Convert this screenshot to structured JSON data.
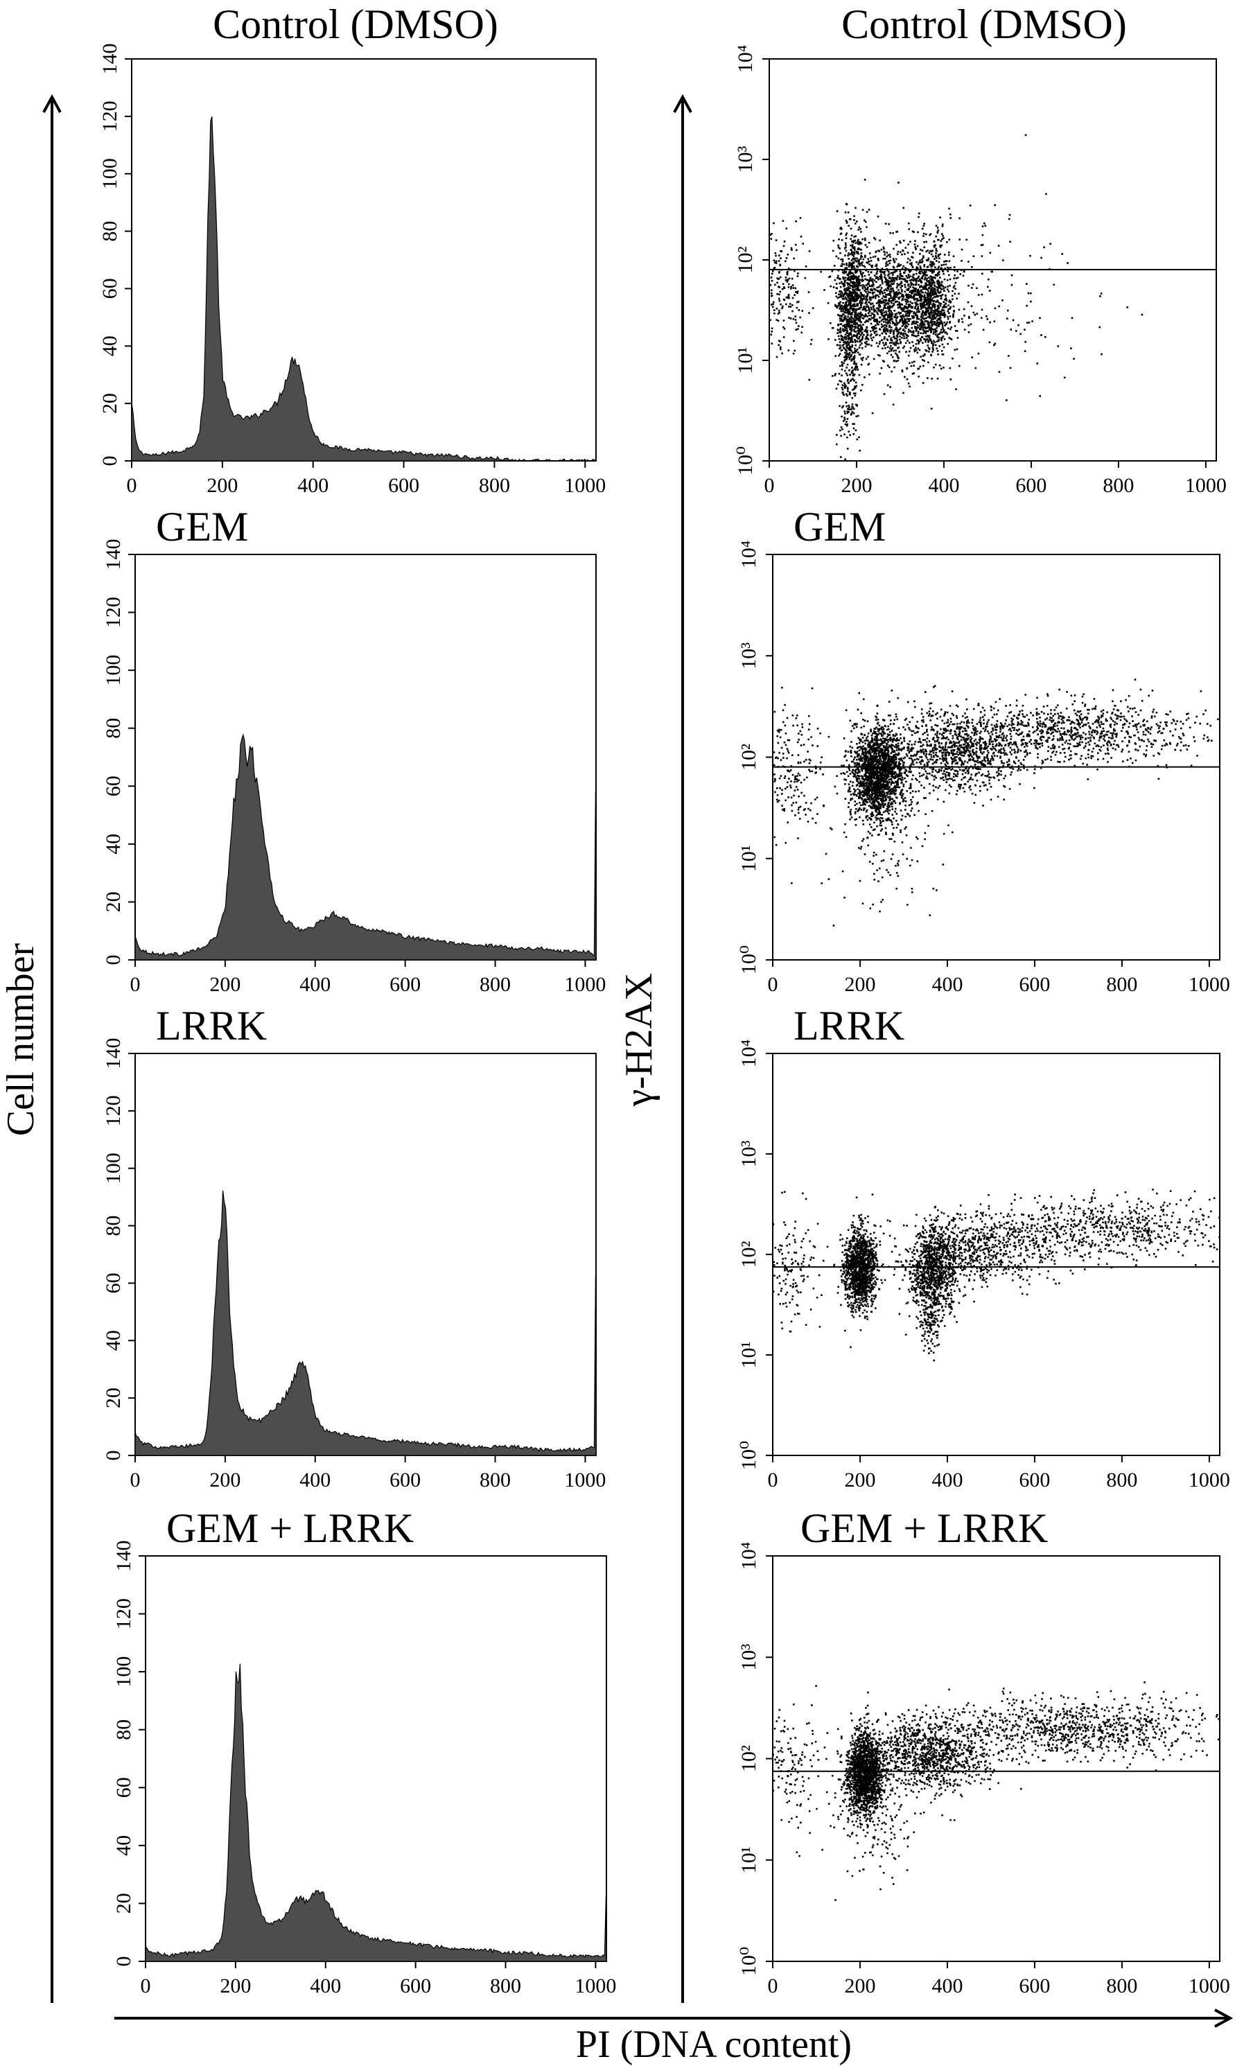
{
  "figure": {
    "y_axis_left_label": "Cell number",
    "y_axis_right_label": "γ-H2AX",
    "x_axis_label": "PI (DNA content)"
  },
  "panel_titles": [
    "Control (DMSO)",
    "GEM",
    "LRRK",
    "GEM + LRRK"
  ],
  "chart_data": [
    {
      "type": "area",
      "title": "Control (DMSO)",
      "xlim": [
        0,
        1024
      ],
      "ylim": [
        0,
        140
      ],
      "xticks": [
        "0",
        "200",
        "400",
        "600",
        "800",
        "1000"
      ],
      "yticks": [
        "0",
        "20",
        "40",
        "60",
        "80",
        "100",
        "120",
        "140"
      ],
      "color": "#4d4d4d",
      "x": [
        0,
        10,
        20,
        40,
        60,
        80,
        100,
        120,
        140,
        150,
        160,
        165,
        170,
        175,
        180,
        185,
        190,
        195,
        200,
        210,
        220,
        240,
        260,
        280,
        300,
        320,
        340,
        350,
        360,
        370,
        380,
        390,
        400,
        420,
        440,
        480,
        520,
        560,
        600,
        650,
        700,
        750,
        800,
        850,
        900,
        1000,
        1024
      ],
      "y": [
        20,
        6,
        3,
        2,
        2,
        3,
        3,
        4,
        6,
        10,
        25,
        60,
        100,
        122,
        112,
        90,
        65,
        45,
        30,
        22,
        17,
        15,
        15,
        16,
        18,
        20,
        28,
        34,
        36,
        33,
        25,
        16,
        10,
        6,
        5,
        4,
        4,
        3,
        3,
        2,
        2,
        1,
        1,
        0,
        0,
        0,
        0
      ]
    },
    {
      "type": "area",
      "title": "GEM",
      "xlim": [
        0,
        1024
      ],
      "ylim": [
        0,
        140
      ],
      "xticks": [
        "0",
        "200",
        "400",
        "600",
        "800",
        "1000"
      ],
      "yticks": [
        "0",
        "20",
        "40",
        "60",
        "80",
        "100",
        "120",
        "140"
      ],
      "color": "#4d4d4d",
      "x": [
        0,
        10,
        20,
        50,
        100,
        150,
        180,
        200,
        210,
        220,
        230,
        240,
        250,
        260,
        270,
        280,
        290,
        300,
        310,
        330,
        350,
        370,
        400,
        420,
        440,
        460,
        480,
        500,
        550,
        600,
        650,
        700,
        750,
        800,
        850,
        900,
        950,
        1000,
        1020,
        1024
      ],
      "y": [
        8,
        4,
        3,
        2,
        2,
        4,
        8,
        18,
        35,
        55,
        68,
        74,
        70,
        72,
        62,
        50,
        38,
        28,
        20,
        14,
        12,
        10,
        12,
        14,
        16,
        15,
        13,
        11,
        10,
        8,
        7,
        6,
        5,
        5,
        4,
        4,
        3,
        3,
        2,
        80
      ]
    },
    {
      "type": "area",
      "title": "LRRK",
      "xlim": [
        0,
        1024
      ],
      "ylim": [
        0,
        140
      ],
      "xticks": [
        "0",
        "200",
        "400",
        "600",
        "800",
        "1000"
      ],
      "yticks": [
        "0",
        "20",
        "40",
        "60",
        "80",
        "100",
        "120",
        "140"
      ],
      "color": "#4d4d4d",
      "x": [
        0,
        10,
        20,
        50,
        100,
        150,
        160,
        170,
        180,
        190,
        195,
        200,
        205,
        210,
        220,
        230,
        250,
        280,
        300,
        320,
        340,
        360,
        370,
        380,
        390,
        400,
        420,
        440,
        480,
        520,
        560,
        600,
        650,
        700,
        750,
        800,
        850,
        900,
        950,
        1000,
        1020,
        1024
      ],
      "y": [
        8,
        5,
        4,
        3,
        3,
        4,
        10,
        30,
        60,
        82,
        88,
        85,
        70,
        50,
        30,
        18,
        13,
        12,
        15,
        18,
        22,
        30,
        32,
        30,
        22,
        14,
        9,
        8,
        7,
        6,
        5,
        5,
        4,
        4,
        3,
        3,
        3,
        2,
        2,
        2,
        3,
        80
      ]
    },
    {
      "type": "area",
      "title": "GEM + LRRK",
      "xlim": [
        0,
        1024
      ],
      "ylim": [
        0,
        140
      ],
      "xticks": [
        "0",
        "200",
        "400",
        "600",
        "800",
        "1000"
      ],
      "yticks": [
        "0",
        "20",
        "40",
        "60",
        "80",
        "100",
        "120",
        "140"
      ],
      "color": "#4d4d4d",
      "x": [
        0,
        10,
        20,
        50,
        100,
        150,
        170,
        180,
        190,
        200,
        205,
        210,
        215,
        220,
        230,
        240,
        260,
        280,
        300,
        320,
        340,
        360,
        380,
        400,
        420,
        440,
        460,
        500,
        550,
        600,
        650,
        700,
        750,
        800,
        850,
        900,
        950,
        1000,
        1020,
        1024
      ],
      "y": [
        5,
        3,
        3,
        2,
        3,
        4,
        8,
        25,
        60,
        95,
        102,
        98,
        85,
        65,
        40,
        25,
        15,
        13,
        14,
        18,
        22,
        20,
        24,
        22,
        16,
        12,
        10,
        8,
        7,
        6,
        5,
        4,
        4,
        3,
        3,
        2,
        2,
        2,
        2,
        30
      ]
    },
    {
      "type": "scatter",
      "title": "Control (DMSO)",
      "xlim": [
        0,
        1024
      ],
      "ylim": [
        1,
        10000
      ],
      "y_scale": "log",
      "xticks": [
        "0",
        "200",
        "400",
        "600",
        "800",
        "1000"
      ],
      "yticks": [
        "10⁰",
        "10¹",
        "10²",
        "10³",
        "10⁴"
      ],
      "threshold_y": 80,
      "color": "#000000",
      "clusters": [
        {
          "x_mean": 190,
          "x_sd": 18,
          "log_y_mean": 1.6,
          "log_y_sd": 0.35,
          "n": 900
        },
        {
          "x_mean": 290,
          "x_sd": 50,
          "log_y_mean": 1.55,
          "log_y_sd": 0.28,
          "n": 1300
        },
        {
          "x_mean": 370,
          "x_sd": 25,
          "log_y_mean": 1.6,
          "log_y_sd": 0.28,
          "n": 700
        },
        {
          "x_mean": 180,
          "x_sd": 12,
          "log_y_mean": 0.7,
          "log_y_sd": 0.35,
          "n": 150
        },
        {
          "x_mean": 30,
          "x_sd": 30,
          "log_y_mean": 1.7,
          "log_y_sd": 0.3,
          "n": 200
        },
        {
          "x_mean": 420,
          "x_sd": 140,
          "log_y_mean": 1.6,
          "log_y_sd": 0.45,
          "n": 250
        }
      ]
    },
    {
      "type": "scatter",
      "title": "GEM",
      "xlim": [
        0,
        1024
      ],
      "ylim": [
        1,
        10000
      ],
      "y_scale": "log",
      "xticks": [
        "0",
        "200",
        "400",
        "600",
        "800",
        "1000"
      ],
      "yticks": [
        "10⁰",
        "10¹",
        "10²",
        "10³",
        "10⁴"
      ],
      "threshold_y": 80,
      "color": "#000000",
      "clusters": [
        {
          "x_mean": 240,
          "x_sd": 30,
          "log_y_mean": 1.85,
          "log_y_sd": 0.22,
          "n": 1800
        },
        {
          "x_mean": 420,
          "x_sd": 80,
          "log_y_mean": 2.05,
          "log_y_sd": 0.2,
          "n": 1000
        },
        {
          "x_mean": 700,
          "x_sd": 150,
          "log_y_mean": 2.25,
          "log_y_sd": 0.15,
          "n": 900
        },
        {
          "x_mean": 40,
          "x_sd": 40,
          "log_y_mean": 1.85,
          "log_y_sd": 0.3,
          "n": 200
        },
        {
          "x_mean": 260,
          "x_sd": 60,
          "log_y_mean": 1.2,
          "log_y_sd": 0.4,
          "n": 150
        }
      ]
    },
    {
      "type": "scatter",
      "title": "LRRK",
      "xlim": [
        0,
        1024
      ],
      "ylim": [
        1,
        10000
      ],
      "y_scale": "log",
      "xticks": [
        "0",
        "200",
        "400",
        "600",
        "800",
        "1000"
      ],
      "yticks": [
        "10⁰",
        "10¹",
        "10²",
        "10³",
        "10⁴"
      ],
      "threshold_y": 75,
      "color": "#000000",
      "clusters": [
        {
          "x_mean": 200,
          "x_sd": 18,
          "log_y_mean": 1.85,
          "log_y_sd": 0.2,
          "n": 1200
        },
        {
          "x_mean": 370,
          "x_sd": 28,
          "log_y_mean": 1.85,
          "log_y_sd": 0.22,
          "n": 900
        },
        {
          "x_mean": 480,
          "x_sd": 90,
          "log_y_mean": 2.05,
          "log_y_sd": 0.18,
          "n": 600
        },
        {
          "x_mean": 750,
          "x_sd": 150,
          "log_y_mean": 2.25,
          "log_y_sd": 0.15,
          "n": 700
        },
        {
          "x_mean": 40,
          "x_sd": 40,
          "log_y_mean": 1.85,
          "log_y_sd": 0.3,
          "n": 150
        },
        {
          "x_mean": 360,
          "x_sd": 15,
          "log_y_mean": 1.35,
          "log_y_sd": 0.15,
          "n": 120
        }
      ]
    },
    {
      "type": "scatter",
      "title": "GEM + LRRK",
      "xlim": [
        0,
        1024
      ],
      "ylim": [
        1,
        10000
      ],
      "y_scale": "log",
      "xticks": [
        "0",
        "200",
        "400",
        "600",
        "800",
        "1000"
      ],
      "yticks": [
        "10⁰",
        "10¹",
        "10²",
        "10³",
        "10⁴"
      ],
      "threshold_y": 75,
      "color": "#000000",
      "clusters": [
        {
          "x_mean": 210,
          "x_sd": 20,
          "log_y_mean": 1.85,
          "log_y_sd": 0.2,
          "n": 1500
        },
        {
          "x_mean": 360,
          "x_sd": 70,
          "log_y_mean": 2.05,
          "log_y_sd": 0.18,
          "n": 1000
        },
        {
          "x_mean": 700,
          "x_sd": 160,
          "log_y_mean": 2.3,
          "log_y_sd": 0.15,
          "n": 900
        },
        {
          "x_mean": 40,
          "x_sd": 40,
          "log_y_mean": 1.9,
          "log_y_sd": 0.3,
          "n": 150
        },
        {
          "x_mean": 230,
          "x_sd": 50,
          "log_y_mean": 1.4,
          "log_y_sd": 0.3,
          "n": 150
        }
      ]
    }
  ]
}
